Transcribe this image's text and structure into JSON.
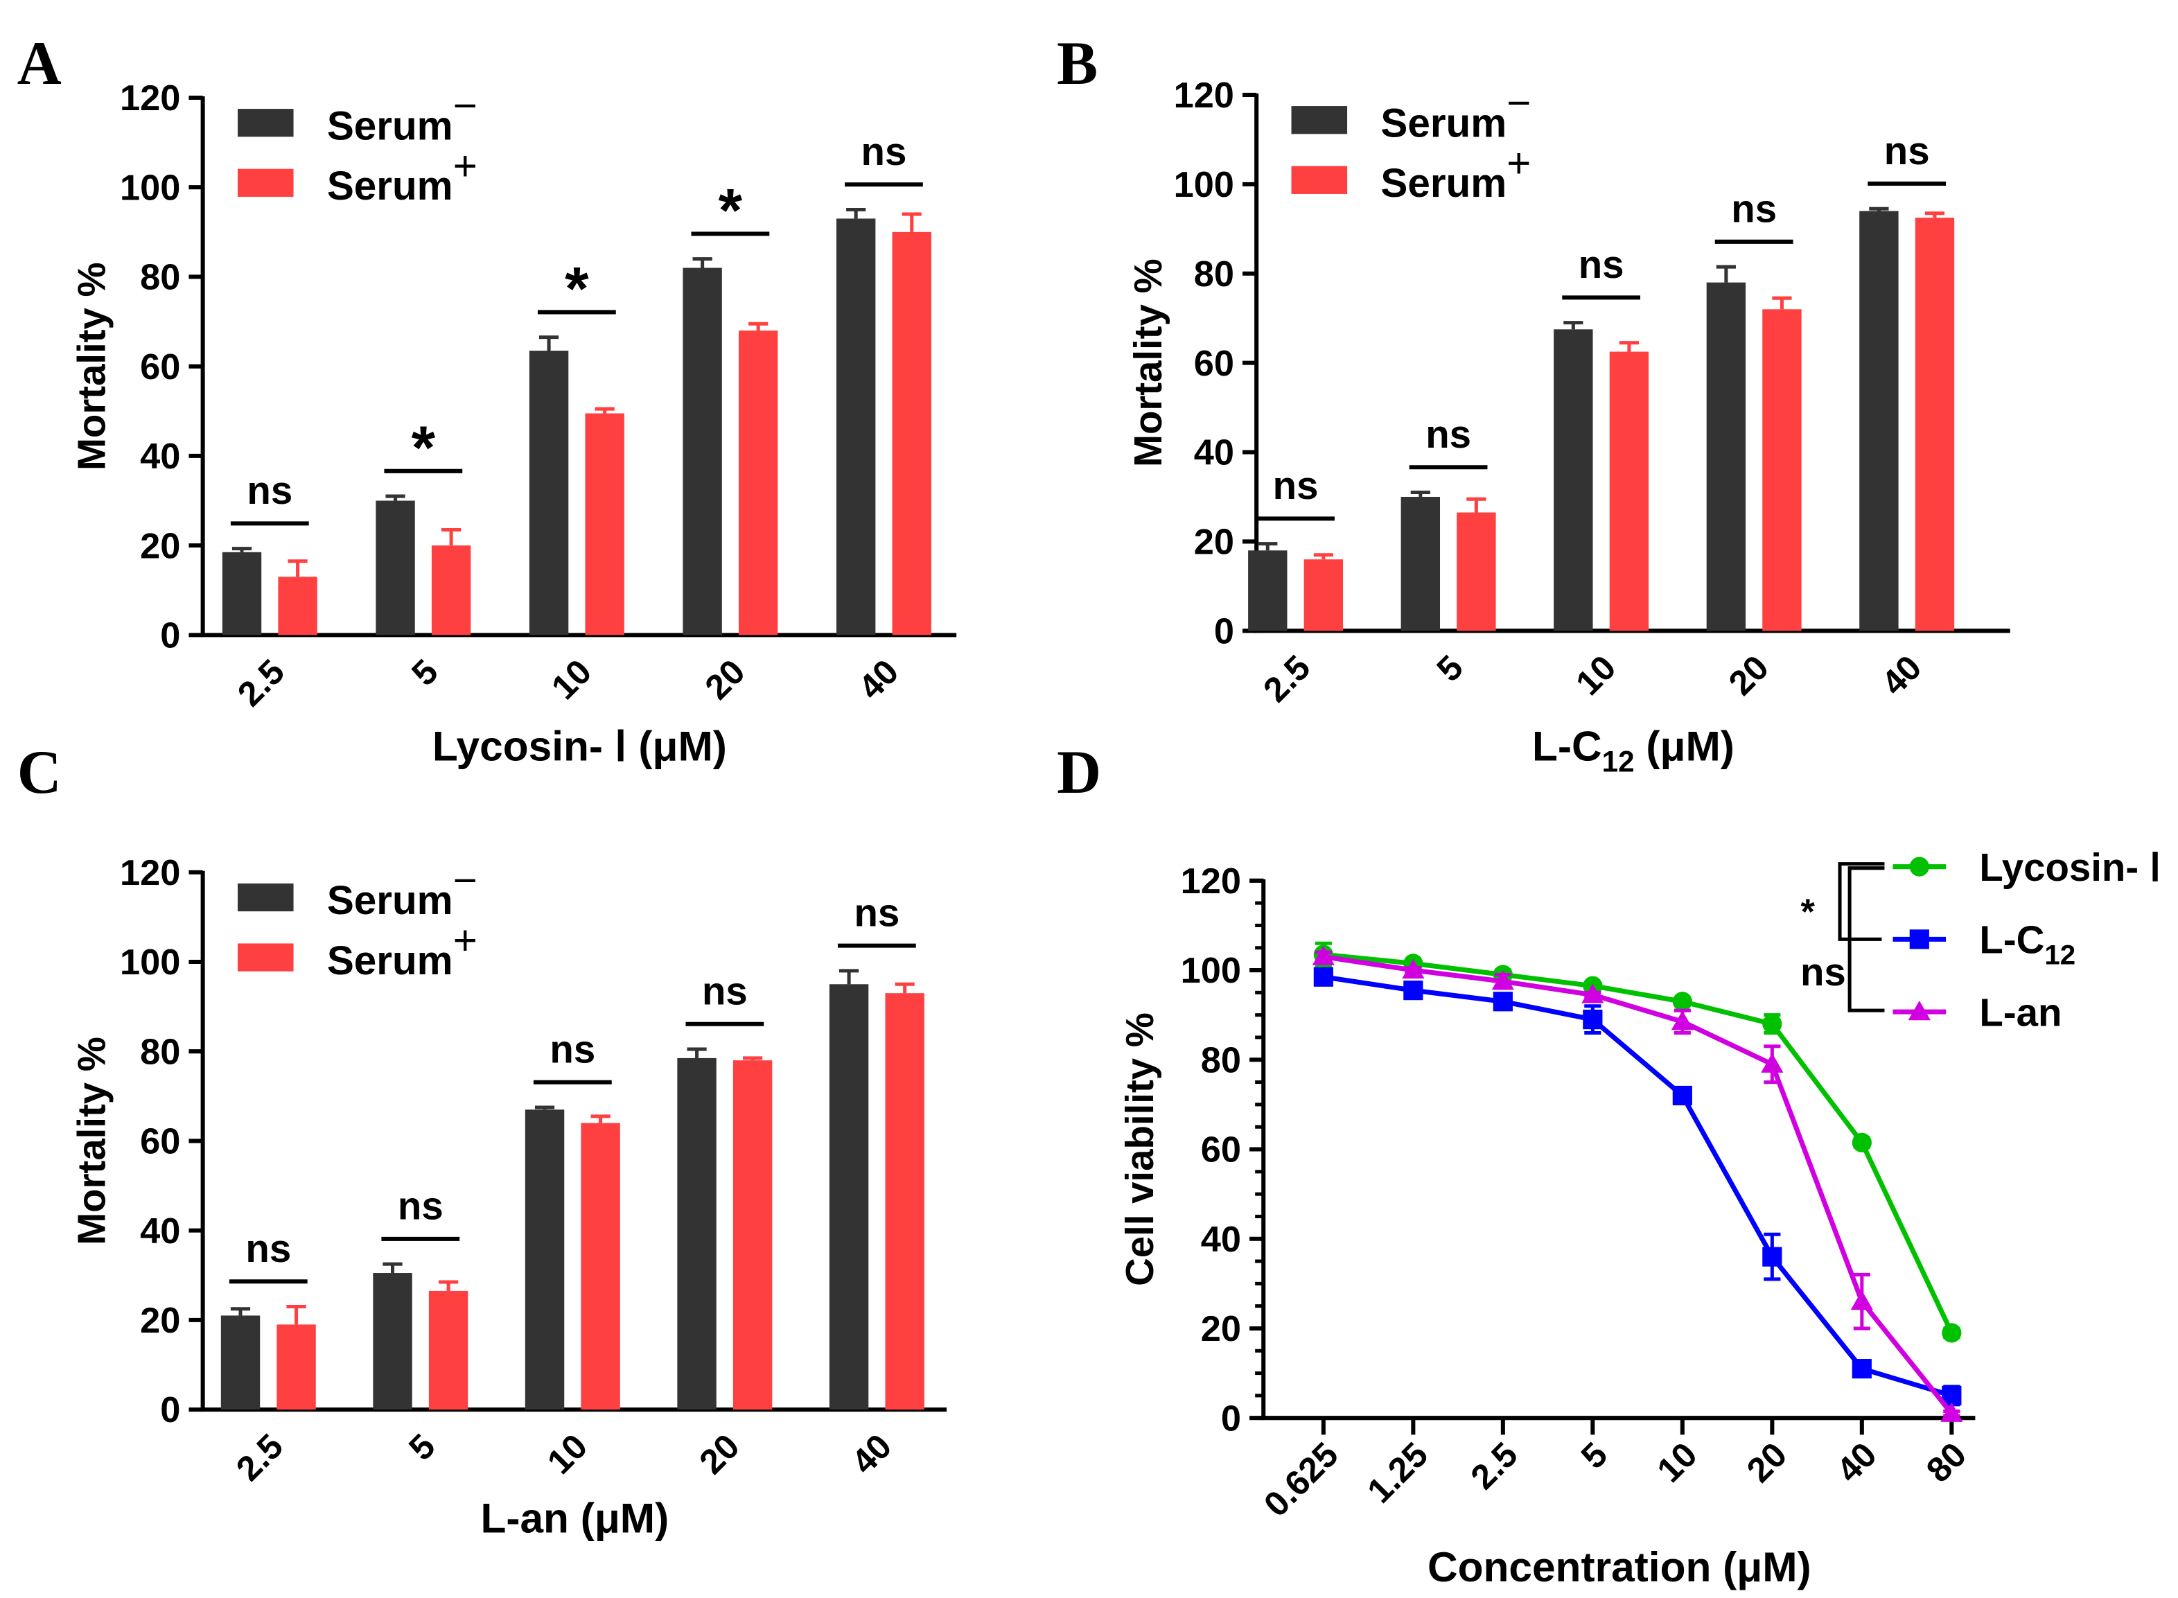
{
  "chart_data": [
    {
      "panel": "A",
      "type": "bar",
      "xlabel": "Lycosin- Ⅰ (μM)",
      "ylabel": "Mortality %",
      "ylim": [
        0,
        120
      ],
      "yticks": [
        0,
        20,
        40,
        60,
        80,
        100,
        120
      ],
      "categories": [
        "2.5",
        "5",
        "10",
        "20",
        "40"
      ],
      "legend_position": "top-left",
      "series": [
        {
          "name": "Serum",
          "sup": "−",
          "color": "#333333",
          "values": [
            18.5,
            30,
            63.5,
            82,
            93
          ],
          "errors": [
            0.8,
            1,
            3,
            2,
            2
          ]
        },
        {
          "name": "Serum",
          "sup": "+",
          "color": "#ff4040",
          "values": [
            13,
            20,
            49.5,
            68,
            90
          ],
          "errors": [
            3.5,
            3.5,
            1,
            1.5,
            4
          ]
        }
      ],
      "significance": [
        "ns",
        "*",
        "*",
        "*",
        "ns"
      ]
    },
    {
      "panel": "B",
      "type": "bar",
      "xlabel": "L-C12 (μM)",
      "xlabel_main": "L-C",
      "xlabel_sub": "12",
      "xlabel_tail": " (μM)",
      "ylabel": "Mortality %",
      "ylim": [
        0,
        120
      ],
      "yticks": [
        0,
        20,
        40,
        60,
        80,
        100,
        120
      ],
      "categories": [
        "2.5",
        "5",
        "10",
        "20",
        "40"
      ],
      "legend_position": "top-left",
      "series": [
        {
          "name": "Serum",
          "sup": "−",
          "color": "#333333",
          "values": [
            18,
            30,
            67.5,
            78,
            94
          ],
          "errors": [
            1.5,
            1,
            1.5,
            3.5,
            0.5
          ]
        },
        {
          "name": "Serum",
          "sup": "+",
          "color": "#ff4040",
          "values": [
            16,
            26.5,
            62.5,
            72,
            92.5
          ],
          "errors": [
            1,
            3,
            2,
            2.5,
            1
          ]
        }
      ],
      "significance": [
        "ns",
        "ns",
        "ns",
        "ns",
        "ns"
      ]
    },
    {
      "panel": "C",
      "type": "bar",
      "xlabel": "L-an (μM)",
      "ylabel": "Mortality %",
      "ylim": [
        0,
        120
      ],
      "yticks": [
        0,
        20,
        40,
        60,
        80,
        100,
        120
      ],
      "categories": [
        "2.5",
        "5",
        "10",
        "20",
        "40"
      ],
      "legend_position": "top-left",
      "series": [
        {
          "name": "Serum",
          "sup": "−",
          "color": "#333333",
          "values": [
            21,
            30.5,
            67,
            78.5,
            95
          ],
          "errors": [
            1.5,
            2,
            0.5,
            2,
            3
          ]
        },
        {
          "name": "Serum",
          "sup": "+",
          "color": "#ff4040",
          "values": [
            19,
            26.5,
            64,
            78,
            93
          ],
          "errors": [
            4,
            2,
            1.5,
            0.5,
            2
          ]
        }
      ],
      "significance": [
        "ns",
        "ns",
        "ns",
        "ns",
        "ns"
      ]
    },
    {
      "panel": "D",
      "type": "line",
      "xlabel": "Concentration (μM)",
      "ylabel": "Cell viability %",
      "ylim": [
        0,
        120
      ],
      "yticks": [
        0,
        20,
        40,
        60,
        80,
        100,
        120
      ],
      "categories": [
        "0.625",
        "1.25",
        "2.5",
        "5",
        "10",
        "20",
        "40",
        "80"
      ],
      "legend_position": "top-right",
      "series": [
        {
          "name": "Lycosin- Ⅰ",
          "color": "#00c000",
          "marker": "circle",
          "values": [
            103.5,
            101.5,
            99,
            96.5,
            93,
            88,
            61.5,
            19
          ],
          "errors": [
            2.5,
            0.5,
            1,
            0.5,
            0.5,
            2,
            1,
            1
          ]
        },
        {
          "name": "L-C",
          "sub": "12",
          "color": "#0000ff",
          "marker": "square",
          "values": [
            98.5,
            95.5,
            93,
            89,
            72,
            36,
            11,
            5
          ],
          "errors": [
            0.5,
            1,
            1,
            3,
            0.5,
            5,
            0.5,
            2
          ]
        },
        {
          "name": "L-an",
          "color": "#d000e0",
          "marker": "triangle",
          "values": [
            103,
            100,
            97.5,
            94.5,
            88.5,
            79,
            26,
            1
          ],
          "errors": [
            1,
            0.5,
            1.5,
            0.5,
            2.5,
            4,
            6,
            0.5
          ]
        }
      ],
      "significance": [
        {
          "label": "*",
          "pair": [
            "Lycosin- Ⅰ",
            "L-C12"
          ]
        },
        {
          "label": "ns",
          "pair": [
            "L-C12",
            "L-an"
          ]
        }
      ]
    }
  ]
}
